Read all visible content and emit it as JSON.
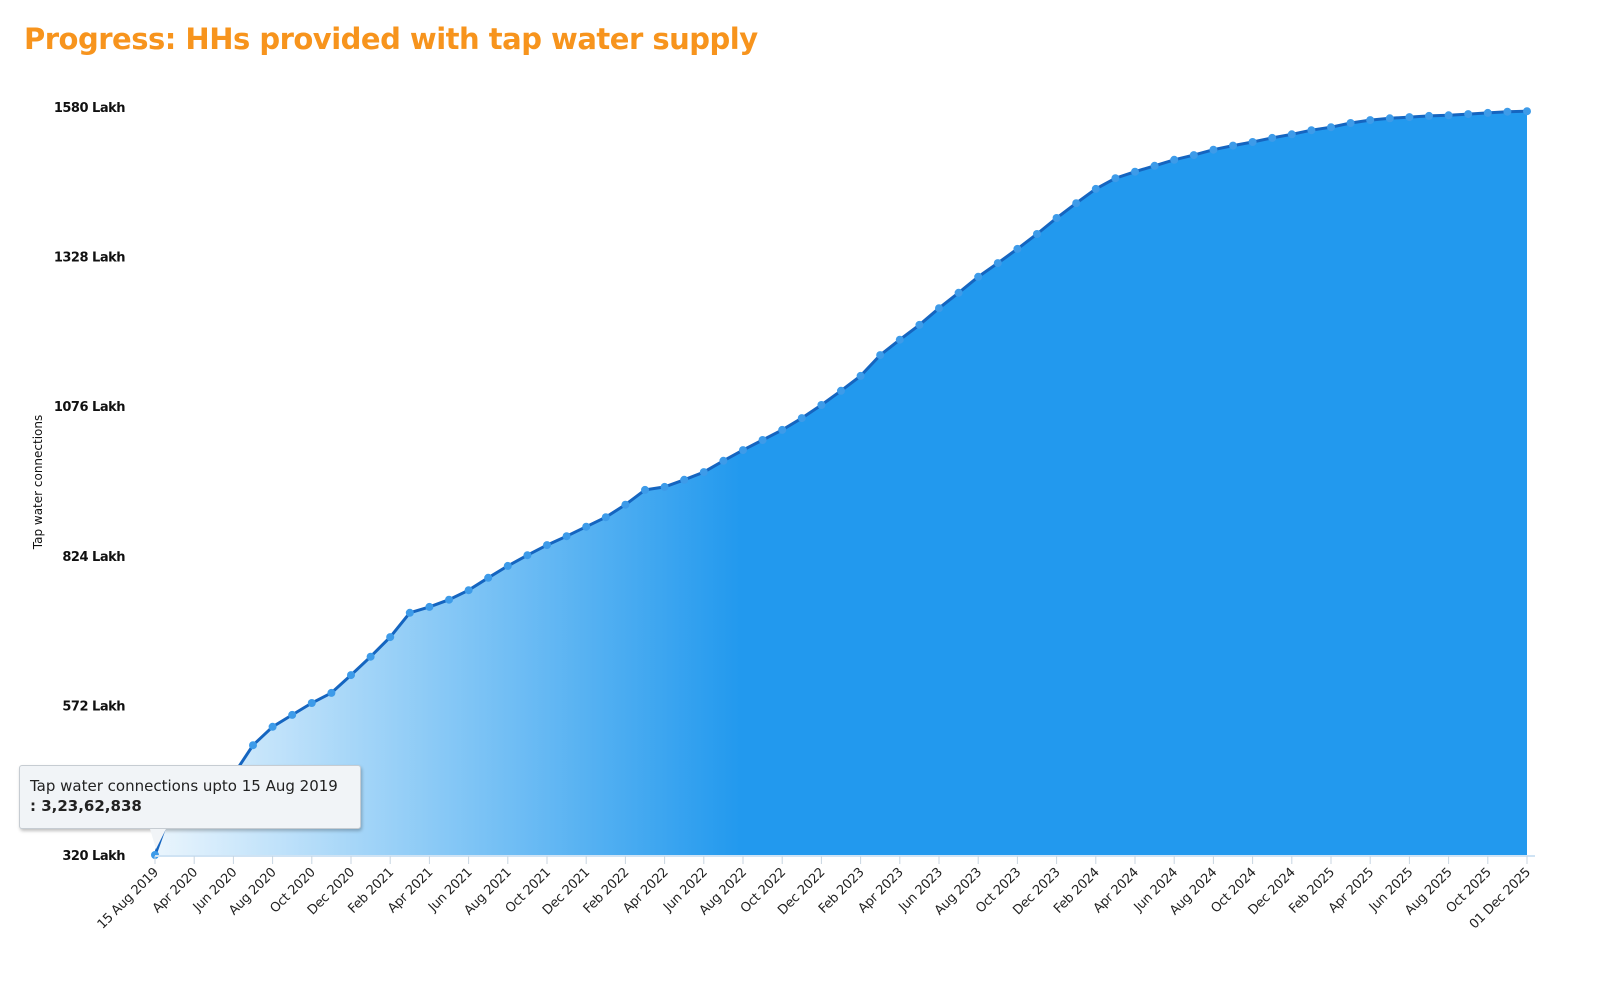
{
  "chart_data": {
    "type": "area",
    "title": "Progress: HHs provided with tap water supply",
    "ylabel": "Tap water connections",
    "xlabel": "",
    "y_unit": "Lakh",
    "ylim": [
      320,
      1580
    ],
    "y_ticks": [
      320,
      572,
      824,
      1076,
      1328,
      1580
    ],
    "y_tick_labels": [
      "320 Lakh",
      "572 Lakh",
      "824 Lakh",
      "1076 Lakh",
      "1328 Lakh",
      "1580 Lakh"
    ],
    "x_tick_labels": [
      "15 Aug 2019",
      "Apr 2020",
      "Jun 2020",
      "Aug 2020",
      "Oct 2020",
      "Dec 2020",
      "Feb 2021",
      "Apr 2021",
      "Jun 2021",
      "Aug 2021",
      "Oct 2021",
      "Dec 2021",
      "Feb 2022",
      "Apr 2022",
      "Jun 2022",
      "Aug 2022",
      "Oct 2022",
      "Dec 2022",
      "Feb 2023",
      "Apr 2023",
      "Jun 2023",
      "Aug 2023",
      "Oct 2023",
      "Dec 2023",
      "Feb 2024",
      "Apr 2024",
      "Jun 2024",
      "Aug 2024",
      "Oct 2024",
      "Dec 2024",
      "Feb 2025",
      "Apr 2025",
      "Jun 2025",
      "Aug 2025",
      "Oct 2025",
      "01 Dec 2025"
    ],
    "values": [
      320,
      413,
      413,
      416,
      455,
      505,
      536,
      556,
      576,
      593,
      623,
      654,
      687,
      728,
      738,
      750,
      766,
      787,
      807,
      825,
      842,
      857,
      873,
      889,
      910,
      935,
      940,
      952,
      965,
      984,
      1002,
      1019,
      1036,
      1056,
      1078,
      1102,
      1127,
      1162,
      1188,
      1213,
      1241,
      1267,
      1294,
      1317,
      1341,
      1366,
      1393,
      1418,
      1442,
      1460,
      1471,
      1481,
      1491,
      1499,
      1508,
      1515,
      1521,
      1528,
      1534,
      1541,
      1546,
      1553,
      1558,
      1561,
      1563,
      1565,
      1566,
      1568,
      1570,
      1572,
      1573
    ],
    "grid": false,
    "tooltip": {
      "text": "Tap water connections upto 15 Aug 2019",
      "value": ": 3,23,62,838"
    }
  },
  "colors": {
    "title": "#f7941d",
    "fill_start": "#e6f3fd",
    "fill_end": "#2299ee",
    "line": "#1565c0",
    "marker": "#3d9be9"
  }
}
